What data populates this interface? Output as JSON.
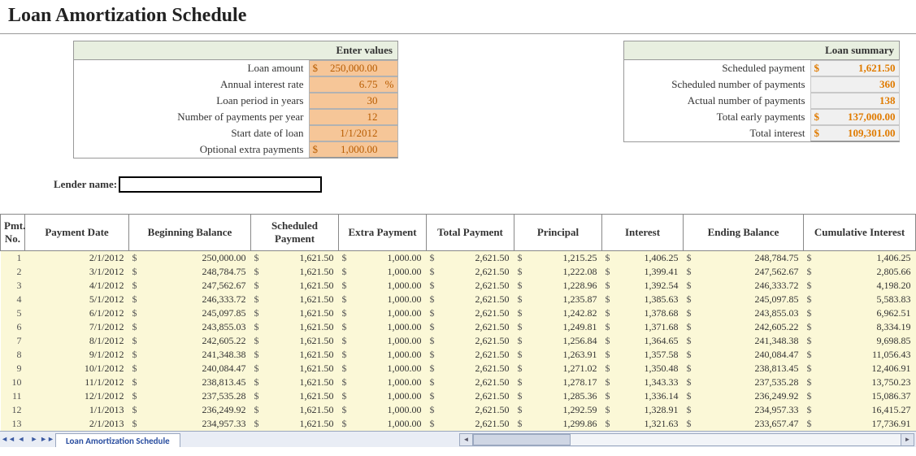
{
  "title": "Loan Amortization Schedule",
  "inputs": {
    "header": "Enter values",
    "rows": [
      {
        "label": "Loan amount",
        "symbol": "$",
        "value": "250,000.00",
        "suffix": ""
      },
      {
        "label": "Annual interest rate",
        "symbol": "",
        "value": "6.75",
        "suffix": "%"
      },
      {
        "label": "Loan period in years",
        "symbol": "",
        "value": "30",
        "suffix": ""
      },
      {
        "label": "Number of payments per year",
        "symbol": "",
        "value": "12",
        "suffix": ""
      },
      {
        "label": "Start date of loan",
        "symbol": "",
        "value": "1/1/2012",
        "suffix": ""
      },
      {
        "label": "Optional extra payments",
        "symbol": "$",
        "value": "1,000.00",
        "suffix": ""
      }
    ]
  },
  "summary": {
    "header": "Loan summary",
    "rows": [
      {
        "label": "Scheduled payment",
        "symbol": "$",
        "value": "1,621.50"
      },
      {
        "label": "Scheduled number of payments",
        "symbol": "",
        "value": "360"
      },
      {
        "label": "Actual number of payments",
        "symbol": "",
        "value": "138"
      },
      {
        "label": "Total early payments",
        "symbol": "$",
        "value": "137,000.00"
      },
      {
        "label": "Total interest",
        "symbol": "$",
        "value": "109,301.00"
      }
    ]
  },
  "lender": {
    "label": "Lender name:",
    "value": ""
  },
  "schedule": {
    "columns": [
      "Pmt. No.",
      "Payment Date",
      "Beginning Balance",
      "Scheduled Payment",
      "Extra Payment",
      "Total Payment",
      "Principal",
      "Interest",
      "Ending Balance",
      "Cumulative Interest"
    ],
    "rows": [
      {
        "no": "1",
        "date": "2/1/2012",
        "beg": "250,000.00",
        "sched": "1,621.50",
        "extra": "1,000.00",
        "total": "2,621.50",
        "princ": "1,215.25",
        "int": "1,406.25",
        "end": "248,784.75",
        "cum": "1,406.25"
      },
      {
        "no": "2",
        "date": "3/1/2012",
        "beg": "248,784.75",
        "sched": "1,621.50",
        "extra": "1,000.00",
        "total": "2,621.50",
        "princ": "1,222.08",
        "int": "1,399.41",
        "end": "247,562.67",
        "cum": "2,805.66"
      },
      {
        "no": "3",
        "date": "4/1/2012",
        "beg": "247,562.67",
        "sched": "1,621.50",
        "extra": "1,000.00",
        "total": "2,621.50",
        "princ": "1,228.96",
        "int": "1,392.54",
        "end": "246,333.72",
        "cum": "4,198.20"
      },
      {
        "no": "4",
        "date": "5/1/2012",
        "beg": "246,333.72",
        "sched": "1,621.50",
        "extra": "1,000.00",
        "total": "2,621.50",
        "princ": "1,235.87",
        "int": "1,385.63",
        "end": "245,097.85",
        "cum": "5,583.83"
      },
      {
        "no": "5",
        "date": "6/1/2012",
        "beg": "245,097.85",
        "sched": "1,621.50",
        "extra": "1,000.00",
        "total": "2,621.50",
        "princ": "1,242.82",
        "int": "1,378.68",
        "end": "243,855.03",
        "cum": "6,962.51"
      },
      {
        "no": "6",
        "date": "7/1/2012",
        "beg": "243,855.03",
        "sched": "1,621.50",
        "extra": "1,000.00",
        "total": "2,621.50",
        "princ": "1,249.81",
        "int": "1,371.68",
        "end": "242,605.22",
        "cum": "8,334.19"
      },
      {
        "no": "7",
        "date": "8/1/2012",
        "beg": "242,605.22",
        "sched": "1,621.50",
        "extra": "1,000.00",
        "total": "2,621.50",
        "princ": "1,256.84",
        "int": "1,364.65",
        "end": "241,348.38",
        "cum": "9,698.85"
      },
      {
        "no": "8",
        "date": "9/1/2012",
        "beg": "241,348.38",
        "sched": "1,621.50",
        "extra": "1,000.00",
        "total": "2,621.50",
        "princ": "1,263.91",
        "int": "1,357.58",
        "end": "240,084.47",
        "cum": "11,056.43"
      },
      {
        "no": "9",
        "date": "10/1/2012",
        "beg": "240,084.47",
        "sched": "1,621.50",
        "extra": "1,000.00",
        "total": "2,621.50",
        "princ": "1,271.02",
        "int": "1,350.48",
        "end": "238,813.45",
        "cum": "12,406.91"
      },
      {
        "no": "10",
        "date": "11/1/2012",
        "beg": "238,813.45",
        "sched": "1,621.50",
        "extra": "1,000.00",
        "total": "2,621.50",
        "princ": "1,278.17",
        "int": "1,343.33",
        "end": "237,535.28",
        "cum": "13,750.23"
      },
      {
        "no": "11",
        "date": "12/1/2012",
        "beg": "237,535.28",
        "sched": "1,621.50",
        "extra": "1,000.00",
        "total": "2,621.50",
        "princ": "1,285.36",
        "int": "1,336.14",
        "end": "236,249.92",
        "cum": "15,086.37"
      },
      {
        "no": "12",
        "date": "1/1/2013",
        "beg": "236,249.92",
        "sched": "1,621.50",
        "extra": "1,000.00",
        "total": "2,621.50",
        "princ": "1,292.59",
        "int": "1,328.91",
        "end": "234,957.33",
        "cum": "16,415.27"
      },
      {
        "no": "13",
        "date": "2/1/2013",
        "beg": "234,957.33",
        "sched": "1,621.50",
        "extra": "1,000.00",
        "total": "2,621.50",
        "princ": "1,299.86",
        "int": "1,321.63",
        "end": "233,657.47",
        "cum": "17,736.91"
      }
    ]
  },
  "tab": {
    "name": "Loan Amortization Schedule"
  },
  "style": {
    "input_cell_bg": "#f6c698",
    "input_cell_fg": "#b85c00",
    "summary_cell_bg": "#f0f0f0",
    "summary_cell_fg": "#e07b00",
    "values_header_bg": "#e8efe0",
    "schedule_row_bg": "#fbf8d7",
    "grid_border": "#888888",
    "tabstrip_bg": "#e9edf5",
    "tab_fg": "#2a4ea0"
  }
}
